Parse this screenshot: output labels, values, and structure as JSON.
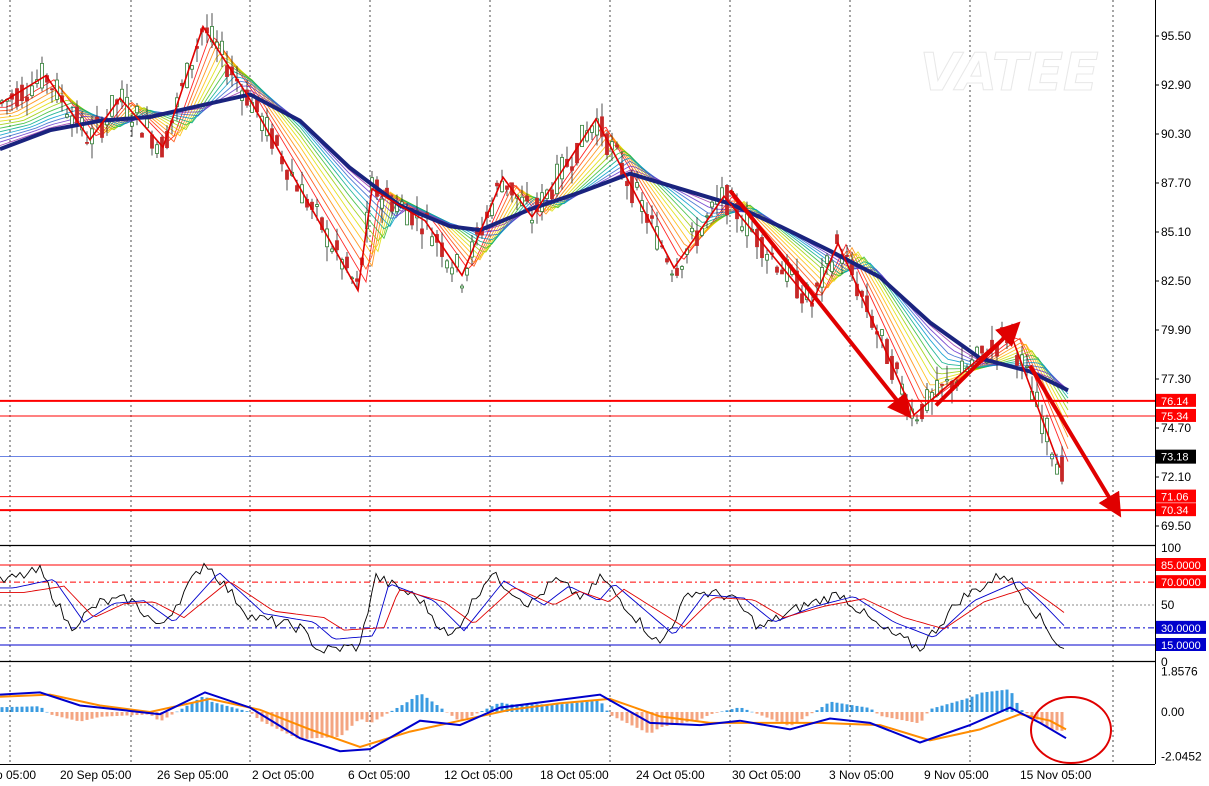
{
  "watermark": "VATEE",
  "colors": {
    "bull": "#2e7d32",
    "bear": "#c62828",
    "zigzag": "#e00000",
    "ma_thick": "#1a237e",
    "level": "#ff0000",
    "current": "#3b5bdb",
    "macd_pos": "#3a9be0",
    "macd_neg": "#f4a582",
    "macd_line": "#0000cc",
    "macd_signal": "#ff8c00",
    "highlight": "#e00000"
  },
  "chart_data": {
    "type": "candlestick",
    "price_axis": {
      "ticks": [
        "95.50",
        "92.90",
        "90.30",
        "87.70",
        "85.10",
        "82.50",
        "79.90",
        "77.30",
        "74.70",
        "72.10",
        "69.50"
      ],
      "range": [
        68.0,
        97.0
      ]
    },
    "time_axis": {
      "labels": [
        "p 05:00",
        "20 Sep 05:00",
        "26 Sep 05:00",
        "2 Oct 05:00",
        "6 Oct 05:00",
        "12 Oct 05:00",
        "18 Oct 05:00",
        "24 Oct 05:00",
        "30 Oct 05:00",
        "3 Nov 05:00",
        "9 Nov 05:00",
        "15 Nov 05:00"
      ]
    },
    "levels": [
      {
        "value": 76.14,
        "label": "76.14",
        "style": "solid-thick"
      },
      {
        "value": 75.34,
        "label": "75.34",
        "style": "solid"
      },
      {
        "value": 71.06,
        "label": "71.06",
        "style": "solid"
      },
      {
        "value": 70.34,
        "label": "70.34",
        "style": "solid-thick"
      }
    ],
    "current_price": {
      "value": 73.18,
      "label": "73.18"
    },
    "zigzag": [
      {
        "t": 0,
        "p": 91.9
      },
      {
        "t": 46,
        "p": 93.4
      },
      {
        "t": 90,
        "p": 90.0
      },
      {
        "t": 120,
        "p": 92.2
      },
      {
        "t": 163,
        "p": 89.6
      },
      {
        "t": 203,
        "p": 96.0
      },
      {
        "t": 248,
        "p": 92.3
      },
      {
        "t": 358,
        "p": 82.0
      },
      {
        "t": 372,
        "p": 87.4
      },
      {
        "t": 425,
        "p": 85.7
      },
      {
        "t": 462,
        "p": 82.8
      },
      {
        "t": 503,
        "p": 88.0
      },
      {
        "t": 532,
        "p": 85.9
      },
      {
        "t": 596,
        "p": 91.1
      },
      {
        "t": 674,
        "p": 83.2
      },
      {
        "t": 724,
        "p": 87.0
      },
      {
        "t": 812,
        "p": 81.3
      },
      {
        "t": 838,
        "p": 84.5
      },
      {
        "t": 914,
        "p": 75.4
      },
      {
        "t": 1010,
        "p": 79.8
      },
      {
        "t": 1060,
        "p": 72.6
      }
    ],
    "ma_main": [
      {
        "t": 0,
        "p": 89.5
      },
      {
        "t": 50,
        "p": 90.5
      },
      {
        "t": 100,
        "p": 91.0
      },
      {
        "t": 150,
        "p": 91.2
      },
      {
        "t": 200,
        "p": 91.8
      },
      {
        "t": 250,
        "p": 92.4
      },
      {
        "t": 300,
        "p": 91.0
      },
      {
        "t": 350,
        "p": 88.5
      },
      {
        "t": 400,
        "p": 86.5
      },
      {
        "t": 450,
        "p": 85.4
      },
      {
        "t": 480,
        "p": 85.2
      },
      {
        "t": 530,
        "p": 86.3
      },
      {
        "t": 580,
        "p": 87.2
      },
      {
        "t": 630,
        "p": 88.2
      },
      {
        "t": 680,
        "p": 87.4
      },
      {
        "t": 730,
        "p": 86.6
      },
      {
        "t": 780,
        "p": 85.4
      },
      {
        "t": 830,
        "p": 84.1
      },
      {
        "t": 880,
        "p": 82.7
      },
      {
        "t": 930,
        "p": 80.3
      },
      {
        "t": 980,
        "p": 78.4
      },
      {
        "t": 1030,
        "p": 77.7
      },
      {
        "t": 1068,
        "p": 76.7
      }
    ],
    "arrows": [
      {
        "from": {
          "t": 730,
          "p": 87.3
        },
        "to": {
          "t": 904,
          "p": 75.7
        }
      },
      {
        "from": {
          "t": 936,
          "p": 75.9
        },
        "to": {
          "t": 1012,
          "p": 79.9
        }
      },
      {
        "from": {
          "t": 1030,
          "p": 78.0
        },
        "to": {
          "t": 1115,
          "p": 70.5
        }
      }
    ],
    "rsi_panel": {
      "ticks": [
        "100",
        "50",
        "0"
      ],
      "range": [
        0,
        100
      ],
      "levels": [
        {
          "value": 85,
          "label": "85.0000",
          "color": "#ff0000",
          "style": "solid"
        },
        {
          "value": 70,
          "label": "70.0000",
          "color": "#ff0000",
          "style": "dashdot"
        },
        {
          "value": 50,
          "label": "",
          "color": "#888888",
          "style": "dotted"
        },
        {
          "value": 30,
          "label": "30.0000",
          "color": "#0000cc",
          "style": "dashdot"
        },
        {
          "value": 15,
          "label": "15.0000",
          "color": "#0000cc",
          "style": "solid"
        }
      ],
      "line_points": [
        {
          "t": 0,
          "v": 70
        },
        {
          "t": 40,
          "v": 80
        },
        {
          "t": 70,
          "v": 30
        },
        {
          "t": 100,
          "v": 52
        },
        {
          "t": 130,
          "v": 55
        },
        {
          "t": 160,
          "v": 30
        },
        {
          "t": 205,
          "v": 88
        },
        {
          "t": 250,
          "v": 40
        },
        {
          "t": 300,
          "v": 30
        },
        {
          "t": 320,
          "v": 10
        },
        {
          "t": 360,
          "v": 14
        },
        {
          "t": 375,
          "v": 75
        },
        {
          "t": 420,
          "v": 55
        },
        {
          "t": 450,
          "v": 20
        },
        {
          "t": 490,
          "v": 78
        },
        {
          "t": 530,
          "v": 50
        },
        {
          "t": 555,
          "v": 72
        },
        {
          "t": 585,
          "v": 55
        },
        {
          "t": 600,
          "v": 75
        },
        {
          "t": 660,
          "v": 15
        },
        {
          "t": 690,
          "v": 62
        },
        {
          "t": 730,
          "v": 58
        },
        {
          "t": 760,
          "v": 30
        },
        {
          "t": 800,
          "v": 48
        },
        {
          "t": 840,
          "v": 60
        },
        {
          "t": 880,
          "v": 30
        },
        {
          "t": 920,
          "v": 12
        },
        {
          "t": 960,
          "v": 55
        },
        {
          "t": 1005,
          "v": 78
        },
        {
          "t": 1030,
          "v": 50
        },
        {
          "t": 1060,
          "v": 14
        }
      ]
    },
    "macd_panel": {
      "ticks": [
        "1.8576",
        "0.00",
        "-2.0452"
      ],
      "range": [
        -2.4,
        2.3
      ],
      "line_points": [
        {
          "t": 0,
          "v": 0.8
        },
        {
          "t": 40,
          "v": 0.9
        },
        {
          "t": 80,
          "v": 0.3
        },
        {
          "t": 120,
          "v": 0.1
        },
        {
          "t": 160,
          "v": -0.1
        },
        {
          "t": 205,
          "v": 0.9
        },
        {
          "t": 250,
          "v": 0.2
        },
        {
          "t": 300,
          "v": -1.2
        },
        {
          "t": 340,
          "v": -1.8
        },
        {
          "t": 370,
          "v": -1.7
        },
        {
          "t": 420,
          "v": -0.4
        },
        {
          "t": 460,
          "v": -0.6
        },
        {
          "t": 500,
          "v": 0.2
        },
        {
          "t": 550,
          "v": 0.5
        },
        {
          "t": 600,
          "v": 0.8
        },
        {
          "t": 650,
          "v": -0.5
        },
        {
          "t": 700,
          "v": -0.6
        },
        {
          "t": 740,
          "v": -0.4
        },
        {
          "t": 790,
          "v": -0.8
        },
        {
          "t": 830,
          "v": -0.3
        },
        {
          "t": 870,
          "v": -0.5
        },
        {
          "t": 920,
          "v": -1.4
        },
        {
          "t": 970,
          "v": -0.6
        },
        {
          "t": 1010,
          "v": 0.2
        },
        {
          "t": 1040,
          "v": -0.5
        },
        {
          "t": 1066,
          "v": -1.2
        }
      ],
      "signal_points": [
        {
          "t": 0,
          "v": 0.7
        },
        {
          "t": 50,
          "v": 0.8
        },
        {
          "t": 100,
          "v": 0.3
        },
        {
          "t": 150,
          "v": 0.0
        },
        {
          "t": 210,
          "v": 0.6
        },
        {
          "t": 260,
          "v": 0.1
        },
        {
          "t": 310,
          "v": -0.8
        },
        {
          "t": 360,
          "v": -1.6
        },
        {
          "t": 410,
          "v": -0.9
        },
        {
          "t": 460,
          "v": -0.4
        },
        {
          "t": 510,
          "v": 0.1
        },
        {
          "t": 560,
          "v": 0.4
        },
        {
          "t": 610,
          "v": 0.6
        },
        {
          "t": 660,
          "v": -0.2
        },
        {
          "t": 710,
          "v": -0.5
        },
        {
          "t": 760,
          "v": -0.5
        },
        {
          "t": 820,
          "v": -0.5
        },
        {
          "t": 880,
          "v": -0.6
        },
        {
          "t": 930,
          "v": -1.3
        },
        {
          "t": 980,
          "v": -0.8
        },
        {
          "t": 1020,
          "v": -0.1
        },
        {
          "t": 1050,
          "v": -0.4
        },
        {
          "t": 1066,
          "v": -0.8
        }
      ]
    }
  }
}
